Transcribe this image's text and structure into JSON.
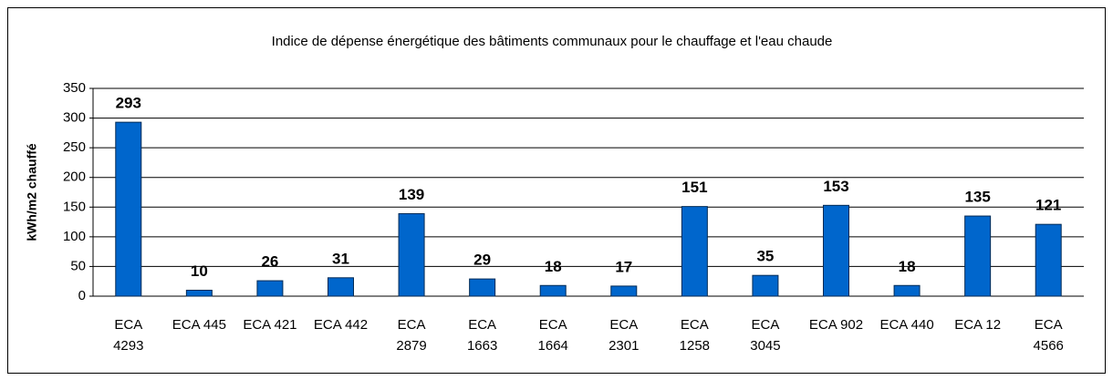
{
  "chart_data": {
    "type": "bar",
    "title": "Indice de dépense énergétique des bâtiments communaux pour le chauffage et l'eau chaude",
    "y_label": "kWh/m2 chauffé",
    "categories": [
      "ECA 4293",
      "ECA 445",
      "ECA 421",
      "ECA 442",
      "ECA 2879",
      "ECA 1663",
      "ECA 1664",
      "ECA 2301",
      "ECA 1258",
      "ECA 3045",
      "ECA 902",
      "ECA 440",
      "ECA 12",
      "ECA 4566"
    ],
    "values": [
      293,
      10,
      26,
      31,
      139,
      29,
      18,
      17,
      151,
      35,
      153,
      18,
      135,
      121
    ],
    "color": "#0066cc",
    "ylim": [
      0,
      350
    ],
    "yticks": [
      0,
      50,
      100,
      150,
      200,
      250,
      300,
      350
    ],
    "grid": true
  }
}
